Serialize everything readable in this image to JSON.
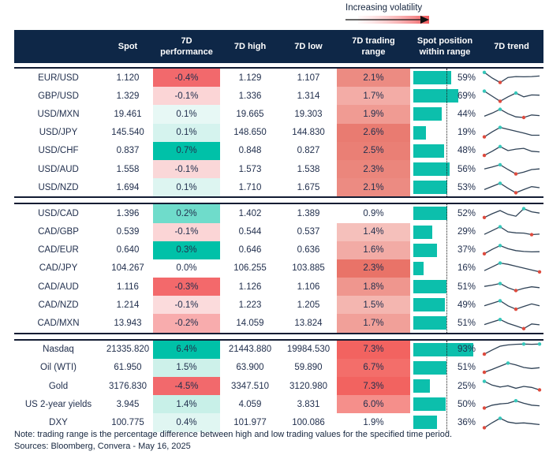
{
  "legend": {
    "label": "Increasing volatility"
  },
  "footer": {
    "note": "Note: trading range is the percentage difference between high and low trading values for the specified time period.",
    "sources": "Sources: Bloomberg, Convera - May 16, 2025"
  },
  "colors": {
    "header_bg": "#0E2747",
    "header_text": "#FFFFFF",
    "body_text": "#22304E",
    "teal_full": "#00C1A8",
    "red_full": "#F2696C",
    "bar": "#0CBFAC",
    "spark_line": "#2F4256",
    "dot_hi": "#35C7BA",
    "dot_lo": "#DE4B3E"
  },
  "chart_data": {
    "type": "table",
    "columns": [
      "Spot",
      "7D performance",
      "7D high",
      "7D low",
      "7D trading range",
      "Spot position within range",
      "7D trend"
    ],
    "groups": [
      {
        "rows": [
          {
            "label": "EUR/USD",
            "spot": "1.120",
            "perf": "-0.4%",
            "perf_bg": "#F2696C",
            "high": "1.129",
            "low": "1.107",
            "range": "2.1%",
            "range_bg": "#EC8B82",
            "pos": 59,
            "pos_label": "59%",
            "trend": {
              "y": [
                0.95,
                0.5,
                0.15,
                0.55,
                0.62,
                0.6,
                0.62,
                0.66
              ],
              "dots": [
                {
                  "i": 0,
                  "c": "hi"
                },
                {
                  "i": 2,
                  "c": "lo"
                }
              ]
            }
          },
          {
            "label": "GBP/USD",
            "spot": "1.329",
            "perf": "-0.1%",
            "perf_bg": "#FBD5D6",
            "high": "1.336",
            "low": "1.314",
            "range": "1.7%",
            "range_bg": "#F3ACA6",
            "pos": 69,
            "pos_label": "69%",
            "trend": {
              "y": [
                0.9,
                0.5,
                0.1,
                0.45,
                0.75,
                0.45,
                0.6,
                0.58
              ],
              "dots": [
                {
                  "i": 0,
                  "c": "hi"
                },
                {
                  "i": 2,
                  "c": "lo"
                },
                {
                  "i": 4,
                  "c": "hi"
                }
              ]
            }
          },
          {
            "label": "USD/MXN",
            "spot": "19.461",
            "perf": "0.1%",
            "perf_bg": "#E7F8F5",
            "high": "19.665",
            "low": "19.303",
            "range": "1.9%",
            "range_bg": "#F09B93",
            "pos": 44,
            "pos_label": "44%",
            "trend": {
              "y": [
                0.35,
                0.6,
                0.9,
                0.55,
                0.3,
                0.25,
                0.45,
                0.4
              ],
              "dots": [
                {
                  "i": 2,
                  "c": "hi"
                },
                {
                  "i": 5,
                  "c": "lo"
                }
              ]
            }
          },
          {
            "label": "USD/JPY",
            "spot": "145.540",
            "perf": "0.1%",
            "perf_bg": "#D5F3EE",
            "high": "148.650",
            "low": "144.830",
            "range": "2.6%",
            "range_bg": "#E97B71",
            "pos": 19,
            "pos_label": "19%",
            "trend": {
              "y": [
                0.15,
                0.55,
                0.9,
                0.75,
                0.6,
                0.45,
                0.28,
                0.28
              ],
              "dots": [
                {
                  "i": 2,
                  "c": "hi"
                },
                {
                  "i": 0,
                  "c": "lo"
                }
              ]
            }
          },
          {
            "label": "USD/CHF",
            "spot": "0.837",
            "perf": "0.7%",
            "perf_bg": "#00C1A8",
            "high": "0.848",
            "low": "0.827",
            "range": "2.5%",
            "range_bg": "#EA7F75",
            "pos": 48,
            "pos_label": "48%",
            "trend": {
              "y": [
                0.12,
                0.45,
                0.82,
                0.5,
                0.62,
                0.68,
                0.45,
                0.4
              ],
              "dots": [
                {
                  "i": 2,
                  "c": "hi"
                },
                {
                  "i": 0,
                  "c": "lo"
                }
              ]
            }
          },
          {
            "label": "USD/AUD",
            "spot": "1.558",
            "perf": "-0.1%",
            "perf_bg": "#FAD7D8",
            "high": "1.573",
            "low": "1.538",
            "range": "2.3%",
            "range_bg": "#EB867C",
            "pos": 56,
            "pos_label": "56%",
            "trend": {
              "y": [
                0.55,
                0.7,
                0.88,
                0.5,
                0.15,
                0.3,
                0.5,
                0.55
              ],
              "dots": [
                {
                  "i": 2,
                  "c": "hi"
                },
                {
                  "i": 4,
                  "c": "lo"
                }
              ]
            }
          },
          {
            "label": "USD/NZD",
            "spot": "1.694",
            "perf": "0.1%",
            "perf_bg": "#DDF5F1",
            "high": "1.710",
            "low": "1.675",
            "range": "2.1%",
            "range_bg": "#EC8B82",
            "pos": 53,
            "pos_label": "53%",
            "trend": {
              "y": [
                0.35,
                0.6,
                0.85,
                0.45,
                0.1,
                0.35,
                0.58,
                0.5
              ],
              "dots": [
                {
                  "i": 2,
                  "c": "hi"
                },
                {
                  "i": 4,
                  "c": "lo"
                }
              ]
            }
          }
        ]
      },
      {
        "rows": [
          {
            "label": "USD/CAD",
            "spot": "1.396",
            "perf": "0.2%",
            "perf_bg": "#6FDCCB",
            "high": "1.402",
            "low": "1.389",
            "range": "0.9%",
            "range_bg": "#FFFFFF",
            "pos": 52,
            "pos_label": "52%",
            "trend": {
              "y": [
                0.2,
                0.5,
                0.75,
                0.45,
                0.3,
                0.9,
                0.65,
                0.55
              ],
              "dots": [
                {
                  "i": 5,
                  "c": "hi"
                },
                {
                  "i": 0,
                  "c": "lo"
                }
              ]
            }
          },
          {
            "label": "CAD/GBP",
            "spot": "0.539",
            "perf": "-0.1%",
            "perf_bg": "#FBD5D6",
            "high": "0.544",
            "low": "0.537",
            "range": "1.4%",
            "range_bg": "#F5C0BB",
            "pos": 29,
            "pos_label": "29%",
            "trend": {
              "y": [
                0.3,
                0.6,
                0.9,
                0.5,
                0.42,
                0.4,
                0.28,
                0.32
              ],
              "dots": [
                {
                  "i": 2,
                  "c": "hi"
                },
                {
                  "i": 6,
                  "c": "lo"
                }
              ]
            }
          },
          {
            "label": "CAD/EUR",
            "spot": "0.640",
            "perf": "0.3%",
            "perf_bg": "#00C1A8",
            "high": "0.646",
            "low": "0.636",
            "range": "1.6%",
            "range_bg": "#F2ABA5",
            "pos": 37,
            "pos_label": "37%",
            "trend": {
              "y": [
                0.2,
                0.55,
                0.85,
                0.6,
                0.45,
                0.38,
                0.35,
                0.36
              ],
              "dots": [
                {
                  "i": 2,
                  "c": "hi"
                },
                {
                  "i": 0,
                  "c": "lo"
                }
              ]
            }
          },
          {
            "label": "CAD/JPY",
            "spot": "104.267",
            "perf": "0.0%",
            "perf_bg": "#FFFFFF",
            "high": "106.255",
            "low": "103.885",
            "range": "2.3%",
            "range_bg": "#E97368",
            "pos": 16,
            "pos_label": "16%",
            "trend": {
              "y": [
                0.3,
                0.6,
                0.9,
                0.8,
                0.65,
                0.5,
                0.35,
                0.2
              ],
              "dots": [
                {
                  "i": 2,
                  "c": "hi"
                },
                {
                  "i": 7,
                  "c": "lo"
                }
              ]
            }
          },
          {
            "label": "CAD/AUD",
            "spot": "1.116",
            "perf": "-0.3%",
            "perf_bg": "#F3696B",
            "high": "1.126",
            "low": "1.106",
            "range": "1.8%",
            "range_bg": "#EF968E",
            "pos": 51,
            "pos_label": "51%",
            "trend": {
              "y": [
                0.55,
                0.65,
                0.78,
                0.45,
                0.22,
                0.4,
                0.52,
                0.45
              ],
              "dots": [
                {
                  "i": 2,
                  "c": "hi"
                },
                {
                  "i": 4,
                  "c": "lo"
                }
              ]
            }
          },
          {
            "label": "CAD/NZD",
            "spot": "1.214",
            "perf": "-0.1%",
            "perf_bg": "#FBDBDC",
            "high": "1.223",
            "low": "1.205",
            "range": "1.5%",
            "range_bg": "#F4B6B0",
            "pos": 49,
            "pos_label": "49%",
            "trend": {
              "y": [
                0.45,
                0.65,
                0.85,
                0.45,
                0.18,
                0.4,
                0.6,
                0.45
              ],
              "dots": [
                {
                  "i": 2,
                  "c": "hi"
                },
                {
                  "i": 4,
                  "c": "lo"
                }
              ]
            }
          },
          {
            "label": "CAD/MXN",
            "spot": "13.943",
            "perf": "-0.2%",
            "perf_bg": "#F8ACAD",
            "high": "14.059",
            "low": "13.824",
            "range": "1.7%",
            "range_bg": "#F1A099",
            "pos": 51,
            "pos_label": "51%",
            "trend": {
              "y": [
                0.4,
                0.6,
                0.8,
                0.5,
                0.3,
                0.08,
                0.45,
                0.38
              ],
              "dots": [
                {
                  "i": 2,
                  "c": "hi"
                },
                {
                  "i": 5,
                  "c": "lo"
                }
              ]
            }
          }
        ]
      },
      {
        "rows": [
          {
            "label": "Nasdaq",
            "spot": "21335.820",
            "perf": "6.4%",
            "perf_bg": "#00C1A8",
            "high": "21443.880",
            "low": "19984.530",
            "range": "7.3%",
            "range_bg": "#F26360",
            "pos": 93,
            "pos_label": "93%",
            "trend": {
              "y": [
                0.12,
                0.45,
                0.75,
                0.85,
                0.9,
                0.92,
                0.9,
                0.92
              ],
              "dots": [
                {
                  "i": 5,
                  "c": "hi"
                },
                {
                  "i": 7,
                  "c": "hi"
                },
                {
                  "i": 0,
                  "c": "lo"
                }
              ]
            }
          },
          {
            "label": "Oil (WTI)",
            "spot": "61.950",
            "perf": "1.5%",
            "perf_bg": "#CDF1EA",
            "high": "63.900",
            "low": "59.890",
            "range": "6.7%",
            "range_bg": "#F36E6A",
            "pos": 51,
            "pos_label": "51%",
            "trend": {
              "y": [
                0.12,
                0.35,
                0.6,
                0.85,
                0.7,
                0.5,
                0.42,
                0.48
              ],
              "dots": [
                {
                  "i": 3,
                  "c": "hi"
                },
                {
                  "i": 0,
                  "c": "lo"
                }
              ]
            }
          },
          {
            "label": "Gold",
            "spot": "3176.830",
            "perf": "-4.5%",
            "perf_bg": "#F2696C",
            "high": "3347.510",
            "low": "3120.980",
            "range": "7.3%",
            "range_bg": "#F26360",
            "pos": 25,
            "pos_label": "25%",
            "trend": {
              "y": [
                0.9,
                0.6,
                0.45,
                0.55,
                0.35,
                0.5,
                0.42,
                0.22
              ],
              "dots": [
                {
                  "i": 0,
                  "c": "hi"
                },
                {
                  "i": 7,
                  "c": "lo"
                }
              ]
            }
          },
          {
            "label": "US 2-year yields",
            "spot": "3.945",
            "perf": "1.4%",
            "perf_bg": "#C8F0E8",
            "high": "4.059",
            "low": "3.831",
            "range": "6.0%",
            "range_bg": "#F58F8B",
            "pos": 50,
            "pos_label": "50%",
            "trend": {
              "y": [
                0.22,
                0.45,
                0.55,
                0.6,
                0.8,
                0.6,
                0.45,
                0.4
              ],
              "dots": [
                {
                  "i": 4,
                  "c": "hi"
                },
                {
                  "i": 0,
                  "c": "lo"
                }
              ]
            }
          },
          {
            "label": "DXY",
            "spot": "100.775",
            "perf": "0.4%",
            "perf_bg": "#E0F6F2",
            "high": "101.977",
            "low": "100.086",
            "range": "1.9%",
            "range_bg": "#FFFFFF",
            "pos": 36,
            "pos_label": "36%",
            "trend": {
              "y": [
                0.1,
                0.5,
                0.85,
                0.55,
                0.45,
                0.48,
                0.42,
                0.35
              ],
              "dots": [
                {
                  "i": 2,
                  "c": "hi"
                },
                {
                  "i": 0,
                  "c": "lo"
                }
              ]
            }
          }
        ]
      }
    ]
  }
}
